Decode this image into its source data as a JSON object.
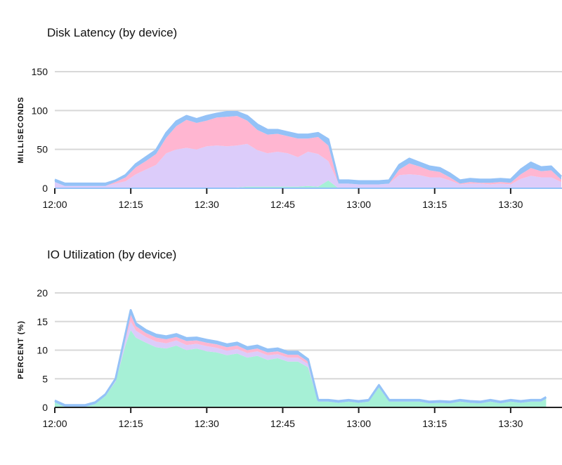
{
  "chart_data": [
    {
      "type": "area",
      "title": "Disk Latency (by device)",
      "ylabel": "MILLISECONDS",
      "xlabel": "",
      "ylim": [
        0,
        150
      ],
      "yticks": [
        0,
        50,
        100,
        150
      ],
      "x_ticks": [
        "12:00",
        "12:15",
        "12:30",
        "12:45",
        "13:00",
        "13:15",
        "13:30"
      ],
      "x_tick_minutes": [
        0,
        15,
        30,
        45,
        60,
        75,
        90
      ],
      "x_range_minutes": [
        0,
        100
      ],
      "grid": true,
      "stacked": true,
      "colors": [
        "#a6f0d6",
        "#dcccfa",
        "#ffb6d1",
        "#94c2f7"
      ],
      "x_minutes": [
        0,
        2,
        4,
        6,
        8,
        10,
        12,
        14,
        16,
        18,
        20,
        22,
        24,
        26,
        28,
        30,
        32,
        34,
        36,
        38,
        40,
        42,
        44,
        46,
        48,
        50,
        52,
        54,
        56,
        58,
        60,
        62,
        64,
        66,
        68,
        70,
        72,
        74,
        76,
        78,
        80,
        82,
        84,
        86,
        88,
        90,
        92,
        94,
        96,
        98,
        100
      ],
      "series": [
        {
          "values": [
            0,
            0,
            0,
            0,
            0,
            0,
            0,
            0,
            0,
            0,
            0,
            0,
            0,
            0,
            0,
            0,
            0,
            0,
            1,
            2,
            2,
            2,
            2,
            2,
            2,
            3,
            2,
            10,
            0,
            0,
            0,
            0,
            0,
            0,
            0,
            0,
            0,
            0,
            0,
            0,
            0,
            0,
            0,
            0,
            0,
            0,
            0,
            0,
            0,
            0,
            0
          ]
        },
        {
          "values": [
            8,
            3,
            3,
            3,
            3,
            3,
            6,
            9,
            18,
            24,
            30,
            45,
            50,
            52,
            50,
            54,
            55,
            54,
            54,
            55,
            47,
            43,
            45,
            43,
            38,
            44,
            42,
            25,
            6,
            6,
            5,
            5,
            5,
            6,
            17,
            18,
            17,
            14,
            14,
            10,
            5,
            6,
            6,
            5,
            6,
            5,
            12,
            16,
            14,
            14,
            8
          ]
        },
        {
          "values": [
            0,
            0,
            0,
            0,
            0,
            0,
            2,
            5,
            9,
            11,
            14,
            20,
            30,
            36,
            34,
            33,
            36,
            38,
            38,
            30,
            26,
            24,
            23,
            22,
            24,
            17,
            22,
            20,
            0,
            0,
            0,
            0,
            0,
            0,
            7,
            14,
            11,
            9,
            7,
            4,
            1,
            2,
            1,
            2,
            2,
            2,
            6,
            10,
            8,
            9,
            3
          ]
        },
        {
          "values": [
            3,
            3,
            3,
            3,
            3,
            3,
            2,
            3,
            4,
            5,
            5,
            6,
            6,
            5,
            5,
            6,
            5,
            6,
            5,
            6,
            7,
            6,
            5,
            5,
            5,
            5,
            5,
            8,
            4,
            4,
            4,
            4,
            4,
            4,
            6,
            6,
            5,
            5,
            5,
            5,
            4,
            4,
            4,
            4,
            4,
            4,
            6,
            7,
            5,
            5,
            4
          ]
        }
      ]
    },
    {
      "type": "area",
      "title": "IO Utilization (by device)",
      "ylabel": "PERCENT (%)",
      "xlabel": "",
      "ylim": [
        0,
        20
      ],
      "yticks": [
        0,
        5,
        10,
        15,
        20
      ],
      "x_ticks": [
        "12:00",
        "12:15",
        "12:30",
        "12:45",
        "13:00",
        "13:15",
        "13:30"
      ],
      "x_tick_minutes": [
        0,
        15,
        30,
        45,
        60,
        75,
        90
      ],
      "x_range_minutes": [
        0,
        100
      ],
      "grid": true,
      "stacked": true,
      "colors": [
        "#a6f0d6",
        "#dcccfa",
        "#ffb6d1",
        "#94c2f7"
      ],
      "x_minutes": [
        0,
        2,
        4,
        6,
        8,
        10,
        12,
        14,
        15,
        16,
        18,
        20,
        22,
        24,
        26,
        28,
        30,
        32,
        34,
        36,
        38,
        40,
        42,
        44,
        46,
        48,
        50,
        52,
        54,
        56,
        58,
        60,
        62,
        64,
        66,
        68,
        70,
        72,
        74,
        76,
        78,
        80,
        82,
        84,
        86,
        88,
        90,
        92,
        94,
        96,
        97
      ],
      "series": [
        {
          "values": [
            0.9,
            0.1,
            0.1,
            0.1,
            0.6,
            2.0,
            4.5,
            11.0,
            13.5,
            12.2,
            11.3,
            10.5,
            10.3,
            10.8,
            10.0,
            10.3,
            9.8,
            9.6,
            9.1,
            9.4,
            8.7,
            9.0,
            8.3,
            8.6,
            8.0,
            8.0,
            7.0,
            1.0,
            1.0,
            0.8,
            1.0,
            0.8,
            1.0,
            3.5,
            1.0,
            1.0,
            1.0,
            1.0,
            0.7,
            0.8,
            0.7,
            1.0,
            0.8,
            0.7,
            1.0,
            0.7,
            1.0,
            0.8,
            1.0,
            1.0,
            1.5
          ]
        },
        {
          "values": [
            0,
            0,
            0,
            0,
            0,
            0,
            0.2,
            1.0,
            1.5,
            1.2,
            1.0,
            1.0,
            0.9,
            0.9,
            0.9,
            0.8,
            0.9,
            0.8,
            0.8,
            0.8,
            0.8,
            0.8,
            0.8,
            0.7,
            0.7,
            0.7,
            0.6,
            0,
            0,
            0,
            0,
            0,
            0,
            0,
            0,
            0,
            0,
            0,
            0,
            0,
            0,
            0,
            0,
            0,
            0,
            0,
            0,
            0,
            0,
            0,
            0
          ]
        },
        {
          "values": [
            0,
            0,
            0,
            0,
            0,
            0,
            0,
            0.6,
            1.2,
            0.8,
            0.7,
            0.7,
            0.7,
            0.6,
            0.7,
            0.6,
            0.6,
            0.6,
            0.6,
            0.6,
            0.5,
            0.5,
            0.5,
            0.5,
            0.5,
            0.5,
            0.4,
            0,
            0,
            0,
            0,
            0,
            0,
            0,
            0,
            0,
            0,
            0,
            0,
            0,
            0,
            0,
            0,
            0,
            0,
            0,
            0,
            0,
            0,
            0,
            0
          ]
        },
        {
          "values": [
            0.3,
            0.3,
            0.3,
            0.3,
            0.3,
            0.3,
            0.3,
            0.4,
            0.8,
            0.5,
            0.5,
            0.5,
            0.5,
            0.5,
            0.5,
            0.5,
            0.5,
            0.5,
            0.5,
            0.5,
            0.5,
            0.5,
            0.5,
            0.5,
            0.5,
            0.5,
            0.4,
            0.3,
            0.3,
            0.3,
            0.3,
            0.3,
            0.3,
            0.4,
            0.3,
            0.3,
            0.3,
            0.3,
            0.3,
            0.3,
            0.3,
            0.3,
            0.3,
            0.3,
            0.3,
            0.3,
            0.3,
            0.3,
            0.3,
            0.3,
            0.3
          ]
        }
      ]
    }
  ]
}
